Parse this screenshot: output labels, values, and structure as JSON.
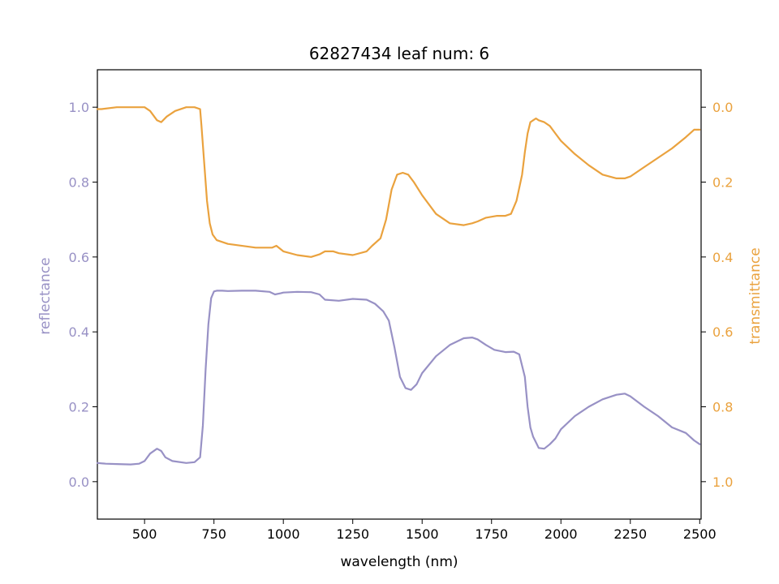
{
  "chart_data": {
    "type": "line",
    "title": "62827434 leaf num: 6",
    "xlabel": "wavelength (nm)",
    "ylabel_left": "reflectance",
    "ylabel_right": "transmittance",
    "xlim": [
      330,
      2505
    ],
    "ylim_left": [
      -0.1,
      1.1
    ],
    "ylim_right": [
      1.1,
      -0.1
    ],
    "right_axis_inverted": true,
    "x_ticks": [
      500,
      750,
      1000,
      1250,
      1500,
      1750,
      2000,
      2250,
      2500
    ],
    "x_tick_labels": [
      "500",
      "750",
      "1000",
      "1250",
      "1500",
      "1750",
      "2000",
      "2250",
      "2500"
    ],
    "y_left_ticks": [
      0.0,
      0.2,
      0.4,
      0.6,
      0.8,
      1.0
    ],
    "y_left_tick_labels": [
      "0.0",
      "0.2",
      "0.4",
      "0.6",
      "0.8",
      "1.0"
    ],
    "y_right_ticks": [
      0.0,
      0.2,
      0.4,
      0.6,
      0.8,
      1.0
    ],
    "y_right_tick_labels": [
      "0.0",
      "0.2",
      "0.4",
      "0.6",
      "0.8",
      "1.0"
    ],
    "grid": false,
    "legend": "none",
    "series": [
      {
        "axis": "left",
        "color": "#9891c5",
        "x": [
          330,
          360,
          400,
          450,
          480,
          500,
          520,
          545,
          560,
          575,
          600,
          650,
          680,
          700,
          710,
          720,
          730,
          740,
          750,
          760,
          780,
          800,
          850,
          900,
          950,
          970,
          990,
          1000,
          1050,
          1100,
          1130,
          1150,
          1200,
          1250,
          1300,
          1330,
          1360,
          1380,
          1400,
          1420,
          1440,
          1460,
          1480,
          1500,
          1550,
          1600,
          1650,
          1680,
          1700,
          1730,
          1760,
          1800,
          1830,
          1850,
          1870,
          1880,
          1890,
          1900,
          1910,
          1920,
          1940,
          1960,
          1980,
          2000,
          2050,
          2100,
          2150,
          2200,
          2230,
          2250,
          2300,
          2350,
          2400,
          2450,
          2480,
          2500
        ],
        "y": [
          0.05,
          0.048,
          0.047,
          0.046,
          0.048,
          0.055,
          0.075,
          0.088,
          0.082,
          0.065,
          0.055,
          0.05,
          0.052,
          0.065,
          0.15,
          0.3,
          0.42,
          0.49,
          0.508,
          0.51,
          0.51,
          0.509,
          0.51,
          0.51,
          0.507,
          0.5,
          0.503,
          0.505,
          0.507,
          0.506,
          0.5,
          0.486,
          0.483,
          0.488,
          0.486,
          0.475,
          0.455,
          0.43,
          0.36,
          0.28,
          0.25,
          0.245,
          0.26,
          0.29,
          0.335,
          0.365,
          0.383,
          0.385,
          0.38,
          0.365,
          0.352,
          0.346,
          0.347,
          0.34,
          0.28,
          0.2,
          0.145,
          0.12,
          0.105,
          0.09,
          0.088,
          0.1,
          0.115,
          0.14,
          0.175,
          0.2,
          0.22,
          0.232,
          0.235,
          0.228,
          0.2,
          0.175,
          0.145,
          0.13,
          0.11,
          0.1
        ]
      },
      {
        "axis": "right",
        "color": "#eaa23e",
        "x": [
          330,
          345,
          400,
          450,
          480,
          500,
          520,
          545,
          560,
          580,
          610,
          650,
          680,
          700,
          705,
          715,
          725,
          735,
          745,
          760,
          800,
          900,
          960,
          975,
          1000,
          1050,
          1100,
          1130,
          1150,
          1180,
          1200,
          1250,
          1300,
          1320,
          1350,
          1370,
          1390,
          1410,
          1430,
          1450,
          1470,
          1500,
          1550,
          1600,
          1650,
          1680,
          1700,
          1730,
          1770,
          1800,
          1820,
          1840,
          1860,
          1870,
          1880,
          1890,
          1900,
          1910,
          1920,
          1940,
          1960,
          1980,
          2000,
          2050,
          2100,
          2150,
          2200,
          2230,
          2250,
          2300,
          2350,
          2400,
          2450,
          2480,
          2500
        ],
        "y": [
          0.005,
          0.005,
          0.0,
          0.0,
          0.0,
          0.0,
          0.01,
          0.035,
          0.04,
          0.025,
          0.01,
          0.0,
          0.0,
          0.005,
          0.05,
          0.15,
          0.25,
          0.31,
          0.34,
          0.355,
          0.365,
          0.375,
          0.375,
          0.37,
          0.385,
          0.395,
          0.4,
          0.393,
          0.385,
          0.385,
          0.39,
          0.395,
          0.385,
          0.37,
          0.35,
          0.3,
          0.22,
          0.18,
          0.175,
          0.18,
          0.2,
          0.235,
          0.285,
          0.31,
          0.315,
          0.31,
          0.305,
          0.295,
          0.29,
          0.29,
          0.285,
          0.25,
          0.18,
          0.12,
          0.07,
          0.04,
          0.035,
          0.03,
          0.035,
          0.04,
          0.05,
          0.07,
          0.09,
          0.125,
          0.155,
          0.18,
          0.19,
          0.19,
          0.185,
          0.16,
          0.135,
          0.11,
          0.08,
          0.06,
          0.06
        ]
      }
    ]
  }
}
